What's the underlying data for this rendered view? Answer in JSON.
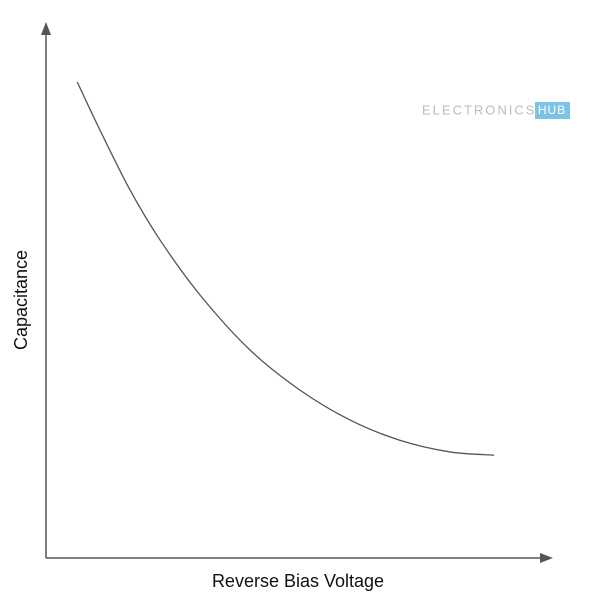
{
  "chart_data": {
    "type": "line",
    "x_label": "Reverse Bias Voltage",
    "y_label": "Capacitance",
    "watermark": "ELECTRONICS",
    "watermark_badge": "HUB",
    "xlim": [
      0,
      100
    ],
    "ylim": [
      0,
      100
    ],
    "series": [
      {
        "color": "#555555",
        "x": [
          6.2,
          10.7,
          16.7,
          22.6,
          30.6,
          40.5,
          50.4,
          60.3,
          70.2,
          80.2,
          88.9
        ],
        "values": [
          89.3,
          80.3,
          69.0,
          59.7,
          49.3,
          39.0,
          31.5,
          25.9,
          22.1,
          19.9,
          19.3
        ]
      }
    ]
  }
}
